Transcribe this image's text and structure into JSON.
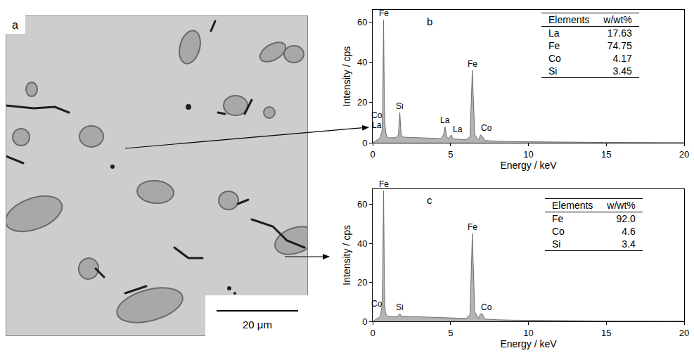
{
  "image_panel": {
    "label": "a",
    "scale_bar": "20 μm"
  },
  "chart_data": [
    {
      "type": "area",
      "label": "b",
      "x_label": "Energy / keV",
      "y_label": "Intensity / cps",
      "x": [
        0,
        0.1,
        0.2,
        0.3,
        0.4,
        0.5,
        0.6,
        0.65,
        0.7,
        0.75,
        0.78,
        0.83,
        0.9,
        1.0,
        1.2,
        1.5,
        1.65,
        1.74,
        1.83,
        2.0,
        2.5,
        3.0,
        3.5,
        4.0,
        4.4,
        4.55,
        4.65,
        4.75,
        4.9,
        5.04,
        5.15,
        5.5,
        6.0,
        6.25,
        6.4,
        6.55,
        6.8,
        6.93,
        7.06,
        7.2,
        7.5,
        8,
        9,
        10,
        11,
        12,
        13,
        14,
        15,
        16,
        17,
        18,
        19,
        20
      ],
      "values": [
        0,
        0.5,
        1,
        1.5,
        2,
        3,
        6,
        20,
        61,
        20,
        10,
        6,
        3,
        2.5,
        2.5,
        2.6,
        4,
        15,
        4,
        2.8,
        2.7,
        2.5,
        2.3,
        2.2,
        2.1,
        4,
        8,
        3,
        2,
        4,
        2,
        1.8,
        1.5,
        3,
        36,
        4,
        1.5,
        4,
        3,
        1.2,
        1,
        0.8,
        0.6,
        0.5,
        0.4,
        0.3,
        0.3,
        0.2,
        0.2,
        0.2,
        0.1,
        0.1,
        0.1,
        0.1
      ],
      "color": "#b4b4b4",
      "xlim": [
        0,
        20
      ],
      "xticks": [
        0,
        5,
        10,
        15,
        20
      ],
      "ylim": [
        0,
        66
      ],
      "yticks": [
        0,
        20,
        40,
        60
      ],
      "grid": false,
      "annotations": [
        {
          "text": "Fe",
          "x": 0.7,
          "y": 61.5
        },
        {
          "text": "Co",
          "x": 0.25,
          "y": 11
        },
        {
          "text": "La",
          "x": 0.25,
          "y": 6
        },
        {
          "text": "Si",
          "x": 1.74,
          "y": 15.5
        },
        {
          "text": "La",
          "x": 4.65,
          "y": 8.5
        },
        {
          "text": "La",
          "x": 5.45,
          "y": 4
        },
        {
          "text": "Fe",
          "x": 6.4,
          "y": 36.5
        },
        {
          "text": "Co",
          "x": 7.3,
          "y": 4.5
        }
      ],
      "table": {
        "header": [
          "Elements",
          "w/wt%"
        ],
        "rows": [
          [
            "La",
            "17.63"
          ],
          [
            "Fe",
            "74.75"
          ],
          [
            "Co",
            "4.17"
          ],
          [
            "Si",
            "3.45"
          ]
        ]
      }
    },
    {
      "type": "area",
      "label": "c",
      "x_label": "Energy / keV",
      "y_label": "Intensity / cps",
      "x": [
        0,
        0.1,
        0.2,
        0.3,
        0.4,
        0.5,
        0.6,
        0.65,
        0.7,
        0.75,
        0.78,
        0.83,
        0.9,
        1.0,
        1.2,
        1.5,
        1.65,
        1.74,
        1.83,
        2.0,
        2.5,
        3.0,
        3.5,
        4.0,
        4.4,
        4.55,
        4.65,
        4.75,
        4.9,
        5.04,
        5.15,
        5.5,
        6.0,
        6.25,
        6.4,
        6.55,
        6.8,
        6.93,
        7.06,
        7.2,
        7.5,
        8,
        9,
        10,
        11,
        12,
        13,
        14,
        15,
        16,
        17,
        18,
        19,
        20
      ],
      "values": [
        0,
        0.5,
        1,
        1.5,
        2,
        3,
        8,
        25,
        67,
        22,
        8,
        4,
        3,
        2.5,
        2.4,
        2.4,
        3,
        4,
        2.6,
        2.5,
        2.4,
        2.3,
        2.2,
        2.1,
        2,
        2,
        2,
        2,
        1.9,
        1.9,
        1.8,
        1.7,
        1.5,
        3.5,
        45,
        5,
        1.5,
        4,
        3.5,
        1.2,
        1,
        0.8,
        0.6,
        0.5,
        0.4,
        0.3,
        0.3,
        0.2,
        0.2,
        0.2,
        0.1,
        0.1,
        0.1,
        0.1
      ],
      "color": "#b4b4b4",
      "xlim": [
        0,
        20
      ],
      "xticks": [
        0,
        5,
        10,
        15,
        20
      ],
      "ylim": [
        0,
        68
      ],
      "yticks": [
        0,
        20,
        40,
        60
      ],
      "grid": false,
      "annotations": [
        {
          "text": "Fe",
          "x": 0.7,
          "y": 67.5
        },
        {
          "text": "Co",
          "x": 0.25,
          "y": 6
        },
        {
          "text": "Si",
          "x": 1.74,
          "y": 4.5
        },
        {
          "text": "Fe",
          "x": 6.4,
          "y": 45.5
        },
        {
          "text": "Co",
          "x": 7.3,
          "y": 4.5
        }
      ],
      "table": {
        "header": [
          "Elements",
          "w/wt%"
        ],
        "rows": [
          [
            "Fe",
            "92.0"
          ],
          [
            "Co",
            "4.6"
          ],
          [
            "Si",
            "3.4"
          ]
        ]
      }
    }
  ]
}
